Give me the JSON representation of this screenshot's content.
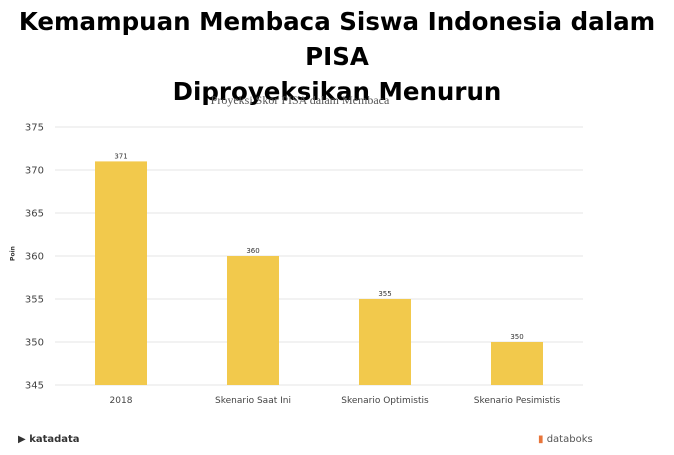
{
  "headline": {
    "line1": "Kemampuan Membaca Siswa Indonesia dalam PISA",
    "line2": "Diproyeksikan Menurun"
  },
  "chart_data": {
    "type": "bar",
    "title": "Proyeksi Skor PISA dalam Membaca",
    "xlabel": "",
    "ylabel": "Poin",
    "categories": [
      "2018",
      "Skenario Saat Ini",
      "Skenario Optimistis",
      "Skenario Pesimistis"
    ],
    "values": [
      371,
      360,
      355,
      350
    ],
    "ylim": [
      345,
      375
    ],
    "yticks": [
      345,
      350,
      355,
      360,
      365,
      370,
      375
    ],
    "grid": true,
    "legend": "none",
    "colors": {
      "bar": "#f2c94c",
      "grid": "#e6e6e6",
      "text": "#444444"
    }
  },
  "footer": {
    "source_logo": "katadata",
    "brand_logo": "databoks"
  },
  "icons": {
    "left_logo": "katadata-logo-icon",
    "right_logo": "databoks-logo-icon"
  }
}
